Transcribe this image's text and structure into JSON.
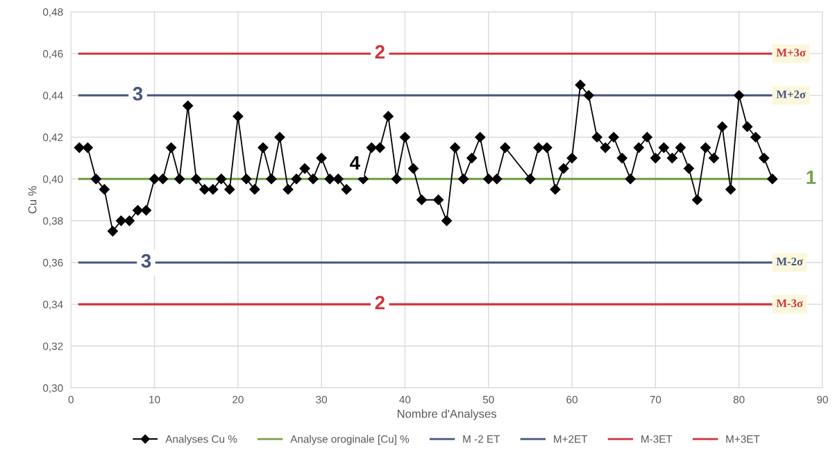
{
  "chart_data": {
    "type": "line",
    "xlabel": "Nombre d'Analyses",
    "ylabel": "Cu %",
    "series": [
      {
        "name": "Analyses Cu %",
        "color": "#000000",
        "marker": "diamond",
        "x": [
          1,
          2,
          3,
          4,
          5,
          6,
          7,
          8,
          9,
          10,
          11,
          12,
          13,
          14,
          15,
          16,
          17,
          18,
          19,
          20,
          21,
          22,
          23,
          24,
          25,
          26,
          27,
          28,
          29,
          30,
          31,
          32,
          33,
          34,
          35,
          36,
          37,
          38,
          39,
          40,
          41,
          42,
          44,
          45,
          46,
          47,
          48,
          49,
          50,
          51,
          52,
          55,
          56,
          57,
          58,
          59,
          60,
          61,
          62,
          63,
          64,
          65,
          66,
          67,
          68,
          69,
          70,
          71,
          72,
          73,
          74,
          75,
          76,
          77,
          78,
          79,
          80,
          81,
          82,
          83,
          84
        ],
        "values": [
          0.415,
          0.415,
          0.4,
          0.395,
          0.375,
          0.38,
          0.38,
          0.385,
          0.385,
          0.4,
          0.4,
          0.415,
          0.4,
          0.435,
          0.4,
          0.395,
          0.395,
          0.4,
          0.395,
          0.43,
          0.4,
          0.395,
          0.415,
          0.4,
          0.42,
          0.395,
          0.4,
          0.405,
          0.4,
          0.41,
          0.4,
          0.4,
          0.395,
          null,
          0.4,
          0.415,
          0.415,
          0.43,
          0.4,
          0.42,
          0.405,
          0.39,
          0.39,
          0.38,
          0.415,
          0.4,
          0.41,
          0.42,
          0.4,
          0.4,
          0.415,
          0.4,
          0.415,
          0.415,
          0.395,
          0.405,
          0.41,
          0.445,
          0.44,
          0.42,
          0.415,
          0.42,
          0.41,
          0.4,
          0.415,
          0.42,
          0.41,
          0.415,
          0.41,
          0.415,
          0.405,
          0.39,
          0.415,
          0.41,
          0.425,
          0.395,
          0.44,
          0.425,
          0.42,
          0.41,
          0.4
        ]
      },
      {
        "name": "Analyse oroginale [Cu] %",
        "color": "#77a04a",
        "marker": "none",
        "x": [
          1,
          84
        ],
        "values": [
          0.4,
          0.4
        ]
      },
      {
        "name": "M -2 ET",
        "color": "#44557f",
        "marker": "none",
        "x": [
          1,
          84
        ],
        "values": [
          0.36,
          0.36
        ]
      },
      {
        "name": "M+2ET",
        "color": "#44557f",
        "marker": "none",
        "x": [
          1,
          84
        ],
        "values": [
          0.44,
          0.44
        ]
      },
      {
        "name": "M-3ET",
        "color": "#d0343c",
        "marker": "none",
        "x": [
          1,
          84
        ],
        "values": [
          0.34,
          0.34
        ]
      },
      {
        "name": "M+3ET",
        "color": "#d0343c",
        "marker": "none",
        "x": [
          1,
          84
        ],
        "values": [
          0.46,
          0.46
        ]
      }
    ],
    "annotations": [
      {
        "text": "M+3σ",
        "x": 84,
        "y": 0.46
      },
      {
        "text": "M+2σ",
        "x": 84,
        "y": 0.44
      },
      {
        "text": "M-2σ",
        "x": 84,
        "y": 0.36
      },
      {
        "text": "M-3σ",
        "x": 84,
        "y": 0.34
      },
      {
        "text": "1",
        "x": 84,
        "y": 0.4
      },
      {
        "text": "2",
        "x": 37,
        "y": 0.46
      },
      {
        "text": "2",
        "x": 37,
        "y": 0.34
      },
      {
        "text": "3",
        "x": 8,
        "y": 0.44
      },
      {
        "text": "3",
        "x": 9,
        "y": 0.36
      },
      {
        "text": "4",
        "x": 34,
        "y": 0.4
      }
    ],
    "xlim": [
      0,
      90
    ],
    "xticks": [
      0,
      10,
      20,
      30,
      40,
      50,
      60,
      70,
      80,
      90
    ],
    "ylim": [
      0.3,
      0.48
    ],
    "yticks": [
      {
        "value": 0.3,
        "label": "0,30"
      },
      {
        "value": 0.32,
        "label": "0,32"
      },
      {
        "value": 0.34,
        "label": "0,34"
      },
      {
        "value": 0.36,
        "label": "0,36"
      },
      {
        "value": 0.38,
        "label": "0,38"
      },
      {
        "value": 0.4,
        "label": "0,40"
      },
      {
        "value": 0.42,
        "label": "0,42"
      },
      {
        "value": 0.44,
        "label": "0,44"
      },
      {
        "value": 0.46,
        "label": "0,46"
      },
      {
        "value": 0.48,
        "label": "0,48"
      }
    ],
    "grid": true,
    "legend": "bottom",
    "line_style": "solid"
  }
}
